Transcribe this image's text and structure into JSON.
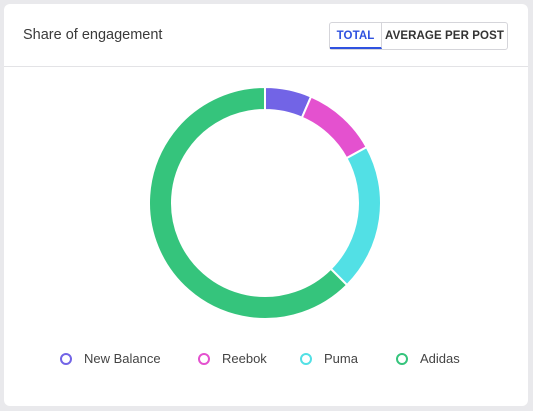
{
  "card": {
    "title": "Share of engagement",
    "tabs": [
      {
        "label": "TOTAL",
        "active": true
      },
      {
        "label": "AVERAGE PER POST",
        "active": false
      }
    ]
  },
  "chart_data": {
    "type": "pie",
    "subtype": "donut",
    "title": "",
    "legend_position": "bottom",
    "series": [
      {
        "name": "New Balance",
        "value": 6.5,
        "color": "#7264e6"
      },
      {
        "name": "Reebok",
        "value": 10.5,
        "color": "#e451cf"
      },
      {
        "name": "Puma",
        "value": 20.5,
        "color": "#52e0e5"
      },
      {
        "name": "Adidas",
        "value": 62.5,
        "color": "#35c47c"
      }
    ]
  }
}
